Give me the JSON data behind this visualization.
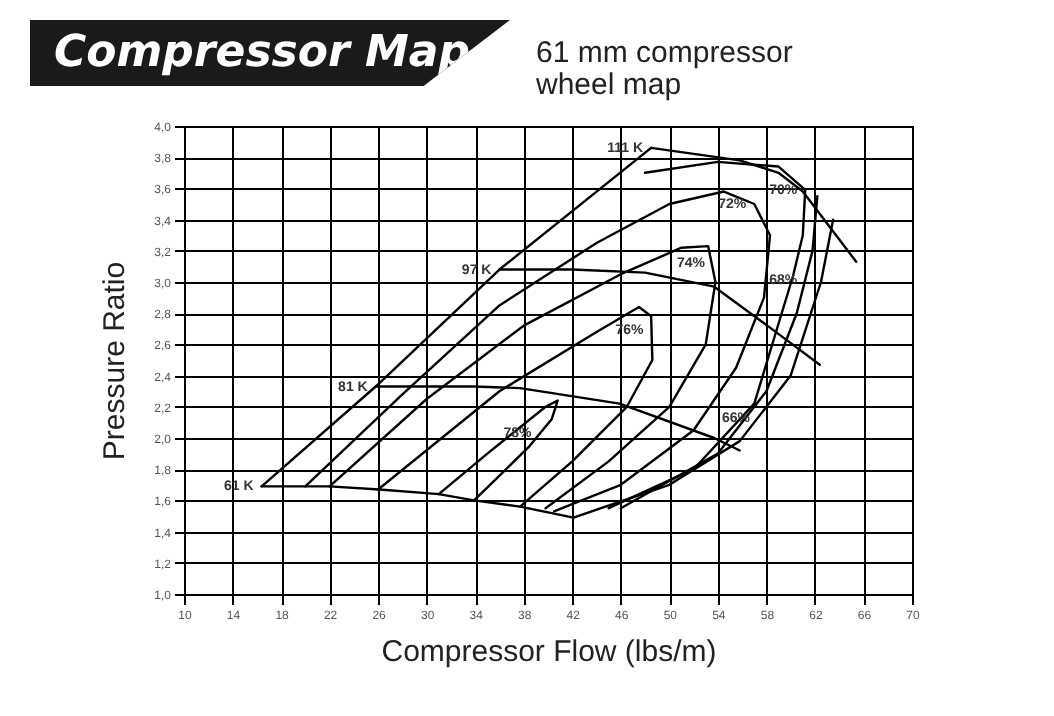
{
  "chart_data": {
    "type": "line",
    "title": "Compressor Map",
    "subtitle": "61 mm compressor wheel map",
    "xlabel": "Compressor Flow (lbs/m)",
    "ylabel": "Pressure Ratio",
    "xlim": [
      10,
      70
    ],
    "xticks": [
      10,
      14,
      18,
      22,
      26,
      30,
      34,
      38,
      42,
      46,
      50,
      54,
      58,
      62,
      66,
      70
    ],
    "ylim": [
      1.0,
      4.0
    ],
    "yticks": [
      {
        "value": 1.0,
        "label": "1,0"
      },
      {
        "value": 1.2,
        "label": "1,2"
      },
      {
        "value": 1.4,
        "label": "1,4"
      },
      {
        "value": 1.6,
        "label": "1,6"
      },
      {
        "value": 1.8,
        "label": "1,8"
      },
      {
        "value": 2.0,
        "label": "2,0"
      },
      {
        "value": 2.2,
        "label": "2,2"
      },
      {
        "value": 2.4,
        "label": "2,4"
      },
      {
        "value": 2.6,
        "label": "2,6"
      },
      {
        "value": 2.8,
        "label": "2,8"
      },
      {
        "value": 3.0,
        "label": "3,0"
      },
      {
        "value": 3.2,
        "label": "3,2"
      },
      {
        "value": 3.4,
        "label": "3,4"
      },
      {
        "value": 3.6,
        "label": "3,6"
      },
      {
        "value": 3.8,
        "label": "3,8"
      },
      {
        "value": 4.0,
        "label": "4,0"
      }
    ],
    "grid": true,
    "marker": "none",
    "line_style": "solid",
    "series": [
      {
        "color": "#000000",
        "x": [
          16.4,
          25.8,
          36,
          48.5
        ],
        "values": [
          1.69,
          2.33,
          3.08,
          3.86
        ]
      },
      {
        "color": "#000000",
        "x": [
          48.5,
          55.8,
          59,
          61,
          65.4
        ],
        "values": [
          3.86,
          3.78,
          3.7,
          3.58,
          3.13
        ]
      },
      {
        "color": "#000000",
        "x": [
          36,
          42,
          48,
          53.7,
          58.6,
          62.4
        ],
        "values": [
          3.08,
          3.08,
          3.06,
          2.97,
          2.69,
          2.47
        ]
      },
      {
        "color": "#000000",
        "x": [
          25.8,
          33.9,
          37.7,
          45.9,
          53.7,
          55.8
        ],
        "values": [
          2.33,
          2.33,
          2.32,
          2.22,
          2.0,
          1.92
        ]
      },
      {
        "color": "#000000",
        "x": [
          16.4,
          22,
          26.1,
          31,
          33.9,
          37.7,
          42.1
        ],
        "values": [
          1.69,
          1.69,
          1.67,
          1.64,
          1.6,
          1.56,
          1.49
        ]
      },
      {
        "color": "#000000",
        "x": [
          31,
          35,
          39.8,
          40.8,
          40.3,
          38.5,
          35.5,
          33.9
        ],
        "values": [
          1.64,
          1.9,
          2.2,
          2.24,
          2.12,
          1.95,
          1.72,
          1.6
        ]
      },
      {
        "color": "#000000",
        "x": [
          26,
          36,
          44,
          47.5,
          48.5,
          48.6,
          46.5,
          42,
          37.7
        ],
        "values": [
          1.67,
          2.3,
          2.68,
          2.84,
          2.78,
          2.5,
          2.2,
          1.85,
          1.56
        ]
      },
      {
        "color": "#000000",
        "x": [
          22,
          30,
          38,
          46,
          51,
          53.2,
          53.8,
          53,
          50,
          45,
          39.8
        ],
        "values": [
          1.69,
          2.25,
          2.72,
          3.05,
          3.22,
          3.23,
          3.0,
          2.6,
          2.2,
          1.85,
          1.55
        ]
      },
      {
        "color": "#000000",
        "x": [
          20,
          28,
          36,
          44,
          50,
          54.5,
          57,
          58.3,
          57.8,
          55.5,
          52,
          46,
          40.5
        ],
        "values": [
          1.69,
          2.28,
          2.85,
          3.25,
          3.5,
          3.58,
          3.5,
          3.3,
          2.9,
          2.45,
          2.05,
          1.7,
          1.53
        ]
      },
      {
        "color": "#000000",
        "x": [
          48,
          54,
          59,
          61.2,
          61,
          60.2,
          57,
          52,
          45
        ],
        "values": [
          3.7,
          3.77,
          3.74,
          3.59,
          3.3,
          3.04,
          2.22,
          1.8,
          1.55
        ]
      },
      {
        "color": "#000000",
        "x": [
          62.2,
          61.8,
          60.5,
          58,
          54,
          46
        ],
        "values": [
          3.55,
          3.2,
          2.8,
          2.3,
          1.9,
          1.55
        ]
      },
      {
        "color": "#000000",
        "x": [
          63.5,
          62.5,
          60,
          55.8,
          50,
          42.1
        ],
        "values": [
          3.4,
          3.0,
          2.4,
          1.98,
          1.7,
          1.49
        ]
      }
    ],
    "annotations": [
      {
        "text": "111 K",
        "x": 48.5,
        "y": 3.86
      },
      {
        "text": "97 K",
        "x": 36,
        "y": 3.08
      },
      {
        "text": "81 K",
        "x": 25.8,
        "y": 2.33
      },
      {
        "text": "61 K",
        "x": 16.4,
        "y": 1.69
      },
      {
        "text": "78%",
        "x": 39.3,
        "y": 2.03
      },
      {
        "text": "76%",
        "x": 48.53,
        "y": 2.69
      },
      {
        "text": "74%",
        "x": 53.6,
        "y": 3.12
      },
      {
        "text": "72%",
        "x": 57,
        "y": 3.5
      },
      {
        "text": "70%",
        "x": 61.2,
        "y": 3.59
      },
      {
        "text": "68%",
        "x": 61.2,
        "y": 3.01
      },
      {
        "text": "66%",
        "x": 57.3,
        "y": 2.13
      }
    ]
  }
}
